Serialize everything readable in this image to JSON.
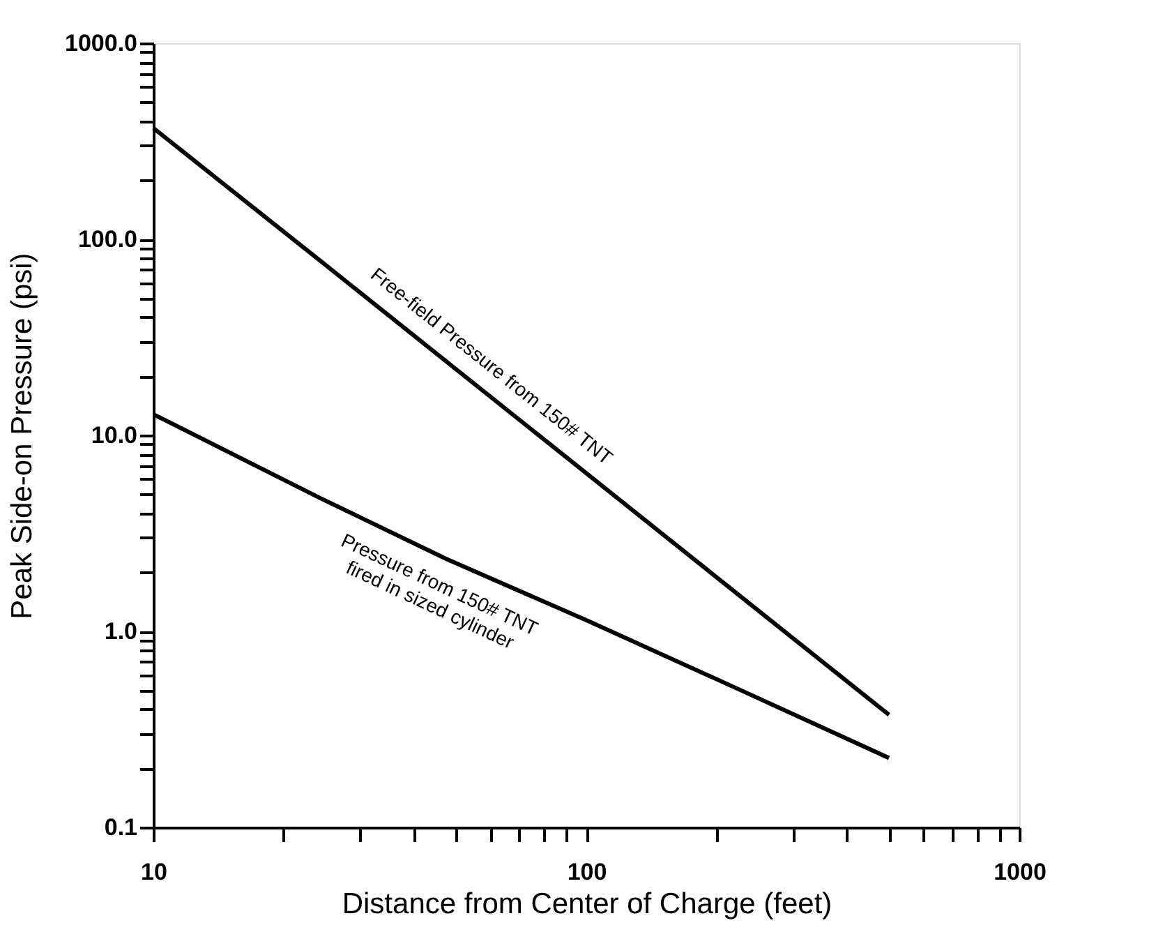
{
  "chart_data": {
    "type": "line",
    "xlabel": "Distance from Center of Charge (feet)",
    "ylabel": "Peak Side-on Pressure (psi)",
    "log": "xy",
    "grid": false,
    "marker": "none",
    "line_style": "solid",
    "xlim": [
      10,
      1000
    ],
    "ylim": [
      0.1,
      1000
    ],
    "xticks": [
      10,
      {
        "value": 20,
        "label": null
      },
      {
        "value": 30,
        "label": null
      },
      {
        "value": 40,
        "label": null
      },
      {
        "value": 50,
        "label": null
      },
      {
        "value": 60,
        "label": null
      },
      {
        "value": 70,
        "label": null
      },
      {
        "value": 80,
        "label": null
      },
      {
        "value": 90,
        "label": null
      },
      100,
      {
        "value": 200,
        "label": null
      },
      {
        "value": 300,
        "label": null
      },
      {
        "value": 400,
        "label": null
      },
      {
        "value": 500,
        "label": null
      },
      {
        "value": 600,
        "label": null
      },
      {
        "value": 700,
        "label": null
      },
      {
        "value": 800,
        "label": null
      },
      {
        "value": 900,
        "label": null
      },
      1000
    ],
    "yticks": [
      {
        "value": 0.1,
        "label": "0.1"
      },
      {
        "value": 0.2,
        "label": null
      },
      {
        "value": 0.3,
        "label": null
      },
      {
        "value": 0.4,
        "label": null
      },
      {
        "value": 0.5,
        "label": null
      },
      {
        "value": 0.6,
        "label": null
      },
      {
        "value": 0.7,
        "label": null
      },
      {
        "value": 0.8,
        "label": null
      },
      {
        "value": 0.9,
        "label": null
      },
      {
        "value": 1,
        "label": "1.0"
      },
      {
        "value": 2,
        "label": null
      },
      {
        "value": 3,
        "label": null
      },
      {
        "value": 4,
        "label": null
      },
      {
        "value": 5,
        "label": null
      },
      {
        "value": 6,
        "label": null
      },
      {
        "value": 7,
        "label": null
      },
      {
        "value": 8,
        "label": null
      },
      {
        "value": 9,
        "label": null
      },
      {
        "value": 10,
        "label": "10.0"
      },
      {
        "value": 20,
        "label": null
      },
      {
        "value": 30,
        "label": null
      },
      {
        "value": 40,
        "label": null
      },
      {
        "value": 50,
        "label": null
      },
      {
        "value": 60,
        "label": null
      },
      {
        "value": 70,
        "label": null
      },
      {
        "value": 80,
        "label": null
      },
      {
        "value": 90,
        "label": null
      },
      {
        "value": 100,
        "label": "100.0"
      },
      {
        "value": 200,
        "label": null
      },
      {
        "value": 300,
        "label": null
      },
      {
        "value": 400,
        "label": null
      },
      {
        "value": 500,
        "label": null
      },
      {
        "value": 600,
        "label": null
      },
      {
        "value": 700,
        "label": null
      },
      {
        "value": 800,
        "label": null
      },
      {
        "value": 900,
        "label": null
      },
      {
        "value": 1000,
        "label": "1000.0"
      }
    ],
    "series": [
      {
        "color": "#000000",
        "x": [
          10,
          24.3,
          100,
          500
        ],
        "values": [
          369,
          77.6,
          6.4,
          0.375
        ]
      },
      {
        "color": "#000000",
        "x": [
          10,
          24.3,
          47.5,
          100,
          225,
          500
        ],
        "values": [
          12.8,
          4.78,
          2.34,
          1.14,
          0.506,
          0.226
        ]
      }
    ],
    "annotations": [
      "Free-field Pressure from 150# TNT",
      "Pressure from 150# TNT\nfired in sized cylinder"
    ]
  }
}
